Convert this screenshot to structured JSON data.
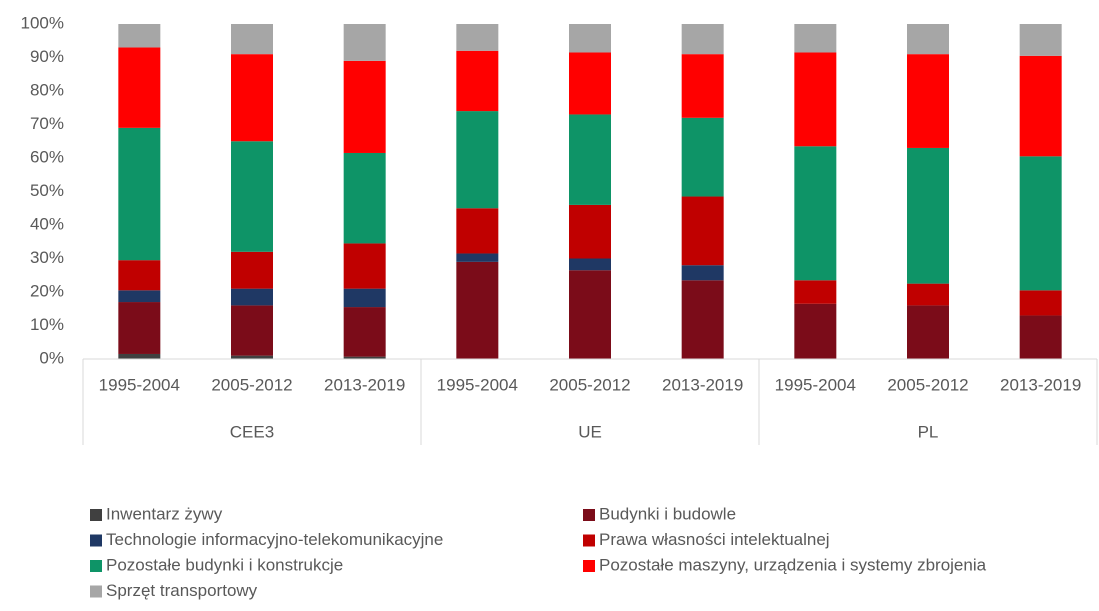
{
  "chart_data": {
    "type": "stacked_bar",
    "categories": [
      "1995-2004",
      "2005-2012",
      "2013-2019",
      "1995-2004",
      "2005-2012",
      "2013-2019",
      "1995-2004",
      "2005-2012",
      "2013-2019"
    ],
    "groups": [
      "CEE3",
      "UE",
      "PL"
    ],
    "ylim": [
      0,
      100
    ],
    "yticks": [
      {
        "value": 0,
        "label": "0%"
      },
      {
        "value": 10,
        "label": "10%"
      },
      {
        "value": 20,
        "label": "20%"
      },
      {
        "value": 30,
        "label": "30%"
      },
      {
        "value": 40,
        "label": "40%"
      },
      {
        "value": 50,
        "label": "50%"
      },
      {
        "value": 60,
        "label": "60%"
      },
      {
        "value": 70,
        "label": "70%"
      },
      {
        "value": 80,
        "label": "80%"
      },
      {
        "value": 90,
        "label": "90%"
      },
      {
        "value": 100,
        "label": "100%"
      }
    ],
    "series": [
      {
        "name": "Inwentarz żywy",
        "color": "#404040",
        "values": [
          1.5,
          1,
          0.7,
          0,
          0,
          0,
          0,
          0,
          0
        ]
      },
      {
        "name": "Budynki i budowle",
        "color": "#7b0c19",
        "values": [
          15.5,
          15,
          14.8,
          29,
          26.5,
          23.5,
          16.5,
          16,
          13
        ]
      },
      {
        "name": "Technologie informacyjno-telekomunikacyjne",
        "color": "#1f3864",
        "values": [
          3.5,
          5,
          5.5,
          2.5,
          3.5,
          4.5,
          0,
          0,
          0
        ]
      },
      {
        "name": "Prawa własności intelektualnej",
        "color": "#c00000",
        "values": [
          9,
          11,
          13.5,
          13.5,
          16,
          20.5,
          7,
          6.5,
          7.5
        ]
      },
      {
        "name": "Pozostałe budynki i konstrukcje",
        "color": "#0e9467",
        "values": [
          39.5,
          33,
          27,
          29,
          27,
          23.5,
          40,
          40.5,
          40
        ]
      },
      {
        "name": "Pozostałe maszyny, urządzenia i systemy zbrojenia",
        "color": "#ff0000",
        "values": [
          24,
          26,
          27.5,
          18,
          18.5,
          19,
          28,
          28,
          30
        ]
      },
      {
        "name": "Sprzęt transportowy",
        "color": "#a6a6a6",
        "values": [
          7,
          9,
          11,
          8,
          8.5,
          9,
          8.5,
          9,
          9.5
        ]
      }
    ]
  }
}
